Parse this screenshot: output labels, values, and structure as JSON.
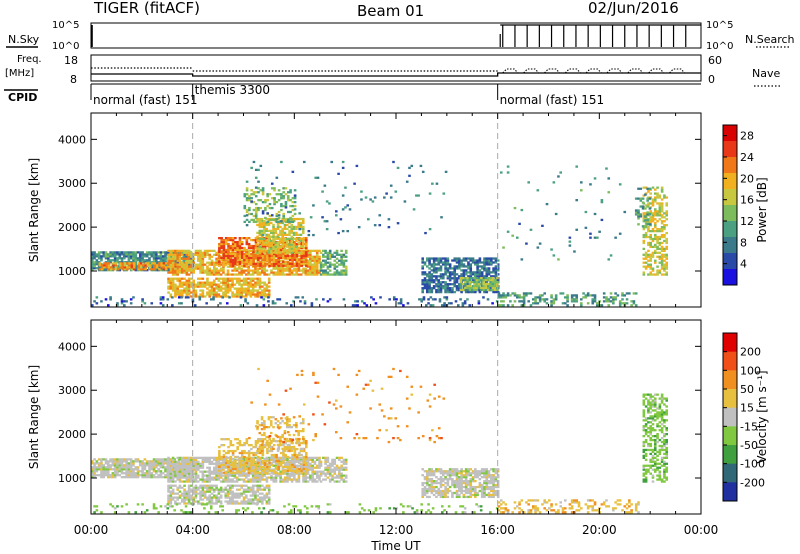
{
  "header": {
    "radar": "TIGER (fitACF)",
    "beam": "Beam 01",
    "date": "02/Jun/2016"
  },
  "left_labels": {
    "nsky": "N.Sky",
    "freq_line1": "Freq.",
    "freq_line2": "[MHz]",
    "cpid": "CPID"
  },
  "right_labels": {
    "nsearch": "N.Search",
    "nave": "Nave"
  },
  "noise_ticks_left": [
    "10^5",
    "10^0"
  ],
  "noise_ticks_right": [
    "10^5",
    "10^0"
  ],
  "freq_ticks": [
    "18",
    "8"
  ],
  "nave_ticks": [
    "60",
    "0"
  ],
  "cpid_labels": [
    {
      "label": "normal (fast) 151",
      "start_h": 0
    },
    {
      "label": "themis 3300",
      "start_h": 4
    },
    {
      "label": "normal (fast) 151",
      "start_h": 16
    }
  ],
  "chart_data": [
    {
      "type": "heatmap",
      "panel": "power",
      "ylabel": "Slant Range [km]",
      "xlabel": "",
      "xlim_hours": [
        0,
        24
      ],
      "ylim": [
        180,
        4600
      ],
      "yticks": [
        "1000",
        "2000",
        "3000",
        "4000"
      ],
      "colorbar": {
        "label": "Power [dB]",
        "ticks": [
          "28",
          "24",
          "20",
          "16",
          "12",
          "8",
          "4"
        ],
        "range": [
          0,
          30
        ],
        "colors": [
          "#1a10e0",
          "#2a4aa8",
          "#3a7a8a",
          "#4aa080",
          "#7cbc5c",
          "#c8c840",
          "#f0b020",
          "#f07818",
          "#e83818",
          "#d80000"
        ]
      },
      "regions": [
        {
          "t0": 0.0,
          "t1": 4.0,
          "r0": 1000,
          "r1": 1450,
          "v": 9,
          "d": 0.85
        },
        {
          "t0": 0.3,
          "t1": 3.8,
          "r0": 1020,
          "r1": 1200,
          "v": 21,
          "d": 0.8
        },
        {
          "t0": 3.0,
          "t1": 9.0,
          "r0": 900,
          "r1": 1450,
          "v": 19,
          "d": 0.75
        },
        {
          "t0": 5.0,
          "t1": 8.5,
          "r0": 1100,
          "r1": 1750,
          "v": 23,
          "d": 0.7
        },
        {
          "t0": 6.5,
          "t1": 8.3,
          "r0": 1400,
          "r1": 2200,
          "v": 17,
          "d": 0.65
        },
        {
          "t0": 3.0,
          "t1": 7.0,
          "r0": 400,
          "r1": 850,
          "v": 19,
          "d": 0.75
        },
        {
          "t0": 6.0,
          "t1": 8.0,
          "r0": 2100,
          "r1": 2900,
          "v": 13,
          "d": 0.35
        },
        {
          "t0": 9.0,
          "t1": 10.0,
          "r0": 900,
          "r1": 1450,
          "v": 12,
          "d": 0.7
        },
        {
          "t0": 13.0,
          "t1": 16.0,
          "r0": 500,
          "r1": 1300,
          "v": 7,
          "d": 0.7
        },
        {
          "t0": 14.5,
          "t1": 16.0,
          "r0": 550,
          "r1": 850,
          "v": 14,
          "d": 0.8
        },
        {
          "t0": 0.0,
          "t1": 16.0,
          "r0": 200,
          "r1": 420,
          "v": 6,
          "d": 0.15
        },
        {
          "t0": 16.0,
          "t1": 21.5,
          "r0": 200,
          "r1": 480,
          "v": 10,
          "d": 0.35
        },
        {
          "t0": 21.7,
          "t1": 22.6,
          "r0": 900,
          "r1": 2900,
          "v": 17,
          "d": 0.55
        },
        {
          "t0": 21.4,
          "t1": 22.0,
          "r0": 2000,
          "r1": 2900,
          "v": 10,
          "d": 0.3
        },
        {
          "t0": 6.0,
          "t1": 14.0,
          "r0": 1800,
          "r1": 3500,
          "v": 8,
          "d": 0.03
        },
        {
          "t0": 16.0,
          "t1": 21.0,
          "r0": 1200,
          "r1": 3400,
          "v": 9,
          "d": 0.02
        }
      ]
    },
    {
      "type": "heatmap",
      "panel": "velocity",
      "ylabel": "Slant Range [km]",
      "xlabel": "Time UT",
      "xlim_hours": [
        0,
        24
      ],
      "xticks": [
        "00:00",
        "04:00",
        "08:00",
        "12:00",
        "16:00",
        "20:00",
        "00:00"
      ],
      "ylim": [
        180,
        4600
      ],
      "yticks": [
        "1000",
        "2000",
        "3000",
        "4000"
      ],
      "colorbar": {
        "label": "Velocity [m s⁻¹]",
        "ticks": [
          "200",
          "100",
          "50",
          "15",
          "-15",
          "-50",
          "-100",
          "-200"
        ],
        "colors": [
          "#2030a0",
          "#306878",
          "#40a040",
          "#80c840",
          "#c0c0c0",
          "#e8c040",
          "#f09020",
          "#f05018",
          "#e00000"
        ]
      },
      "regions": [
        {
          "t0": 0.0,
          "t1": 4.0,
          "r0": 1000,
          "r1": 1450,
          "v": 4,
          "d": 0.85
        },
        {
          "t0": 3.0,
          "t1": 9.0,
          "r0": 900,
          "r1": 1450,
          "v": 4,
          "d": 0.75
        },
        {
          "t0": 5.0,
          "t1": 8.5,
          "r0": 1100,
          "r1": 1900,
          "v": 5,
          "d": 0.5
        },
        {
          "t0": 6.5,
          "t1": 8.3,
          "r0": 1600,
          "r1": 2400,
          "v": 5,
          "d": 0.35
        },
        {
          "t0": 3.0,
          "t1": 7.0,
          "r0": 400,
          "r1": 850,
          "v": 4,
          "d": 0.7
        },
        {
          "t0": 9.0,
          "t1": 10.0,
          "r0": 900,
          "r1": 1450,
          "v": 4,
          "d": 0.6
        },
        {
          "t0": 13.0,
          "t1": 16.0,
          "r0": 550,
          "r1": 1200,
          "v": 4,
          "d": 0.7
        },
        {
          "t0": 0.0,
          "t1": 16.0,
          "r0": 200,
          "r1": 420,
          "v": 3,
          "d": 0.15
        },
        {
          "t0": 16.0,
          "t1": 21.5,
          "r0": 200,
          "r1": 480,
          "v": 5,
          "d": 0.35
        },
        {
          "t0": 21.7,
          "t1": 22.6,
          "r0": 900,
          "r1": 2900,
          "v": 3,
          "d": 0.5
        },
        {
          "t0": 6.0,
          "t1": 14.0,
          "r0": 1800,
          "r1": 3500,
          "v": 6,
          "d": 0.03
        }
      ]
    }
  ]
}
